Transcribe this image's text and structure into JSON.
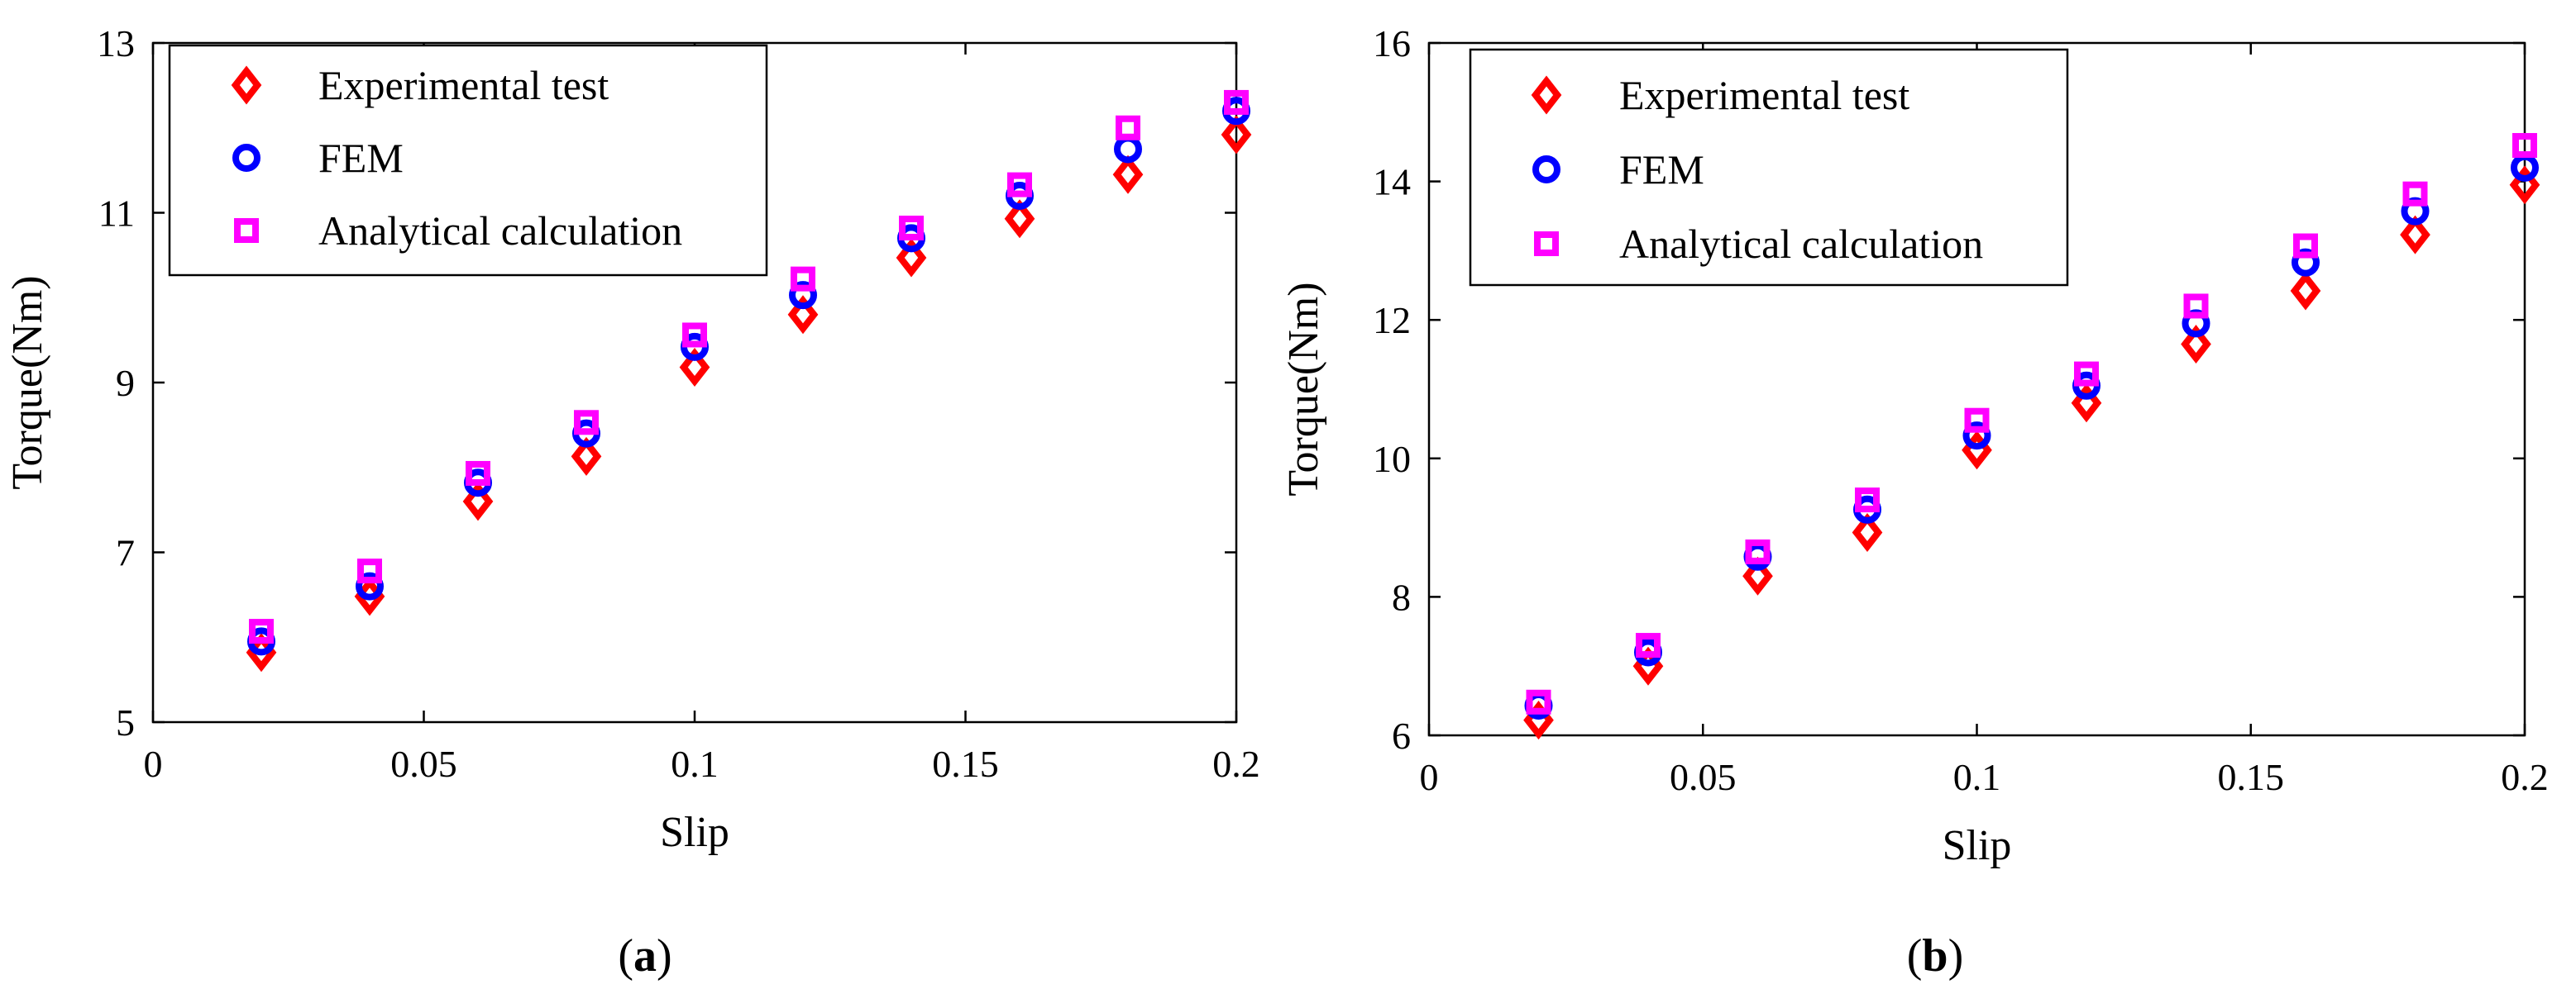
{
  "chart_data": [
    {
      "type": "scatter",
      "xlabel": "Slip",
      "ylabel": "Torque(Nm)",
      "xlim": [
        0,
        0.2
      ],
      "ylim": [
        5,
        13
      ],
      "xticks": [
        "0",
        "0.05",
        "0.1",
        "0.15",
        "0.2"
      ],
      "xtick_values": [
        0,
        0.05,
        0.1,
        0.15,
        0.2
      ],
      "yticks": [
        "5",
        "7",
        "9",
        "11",
        "13"
      ],
      "ytick_values": [
        5,
        7,
        9,
        11,
        13
      ],
      "legend_position": "top-left",
      "x": [
        0.02,
        0.04,
        0.06,
        0.08,
        0.1,
        0.12,
        0.14,
        0.16,
        0.18,
        0.2
      ],
      "series": [
        {
          "name": "Experimental test",
          "marker": "diamond",
          "color": "#ff0000",
          "values": [
            5.82,
            6.48,
            7.6,
            8.13,
            9.18,
            9.8,
            10.47,
            10.93,
            11.45,
            11.92
          ]
        },
        {
          "name": "FEM",
          "marker": "circle",
          "color": "#0000ff",
          "values": [
            5.95,
            6.6,
            7.82,
            8.4,
            9.42,
            10.03,
            10.7,
            11.2,
            11.75,
            12.2
          ]
        },
        {
          "name": "Analytical calculation",
          "marker": "square",
          "color": "#ff00ff",
          "values": [
            6.07,
            6.78,
            7.93,
            8.53,
            9.56,
            10.22,
            10.82,
            11.33,
            12.0,
            12.3
          ]
        }
      ],
      "caption_open": "(",
      "caption_letter": "a",
      "caption_close": ")"
    },
    {
      "type": "scatter",
      "xlabel": "Slip",
      "ylabel": "Torque(Nm)",
      "xlim": [
        0,
        0.2
      ],
      "ylim": [
        6,
        16
      ],
      "xticks": [
        "0",
        "0.05",
        "0.1",
        "0.15",
        "0.2"
      ],
      "xtick_values": [
        0,
        0.05,
        0.1,
        0.15,
        0.2
      ],
      "yticks": [
        "6",
        "8",
        "10",
        "12",
        "14",
        "16"
      ],
      "ytick_values": [
        6,
        8,
        10,
        12,
        14,
        16
      ],
      "legend_position": "top-left",
      "x": [
        0.02,
        0.04,
        0.06,
        0.08,
        0.1,
        0.12,
        0.14,
        0.16,
        0.18,
        0.2
      ],
      "series": [
        {
          "name": "Experimental test",
          "marker": "diamond",
          "color": "#ff0000",
          "values": [
            6.22,
            7.0,
            8.3,
            8.93,
            10.12,
            10.8,
            11.65,
            12.42,
            13.23,
            13.95
          ]
        },
        {
          "name": "FEM",
          "marker": "circle",
          "color": "#0000ff",
          "values": [
            6.43,
            7.2,
            8.58,
            9.26,
            10.33,
            11.05,
            11.95,
            12.83,
            13.57,
            14.2
          ]
        },
        {
          "name": "Analytical calculation",
          "marker": "square",
          "color": "#ff00ff",
          "values": [
            6.48,
            7.3,
            8.65,
            9.4,
            10.55,
            11.22,
            12.2,
            13.07,
            13.82,
            14.52
          ]
        }
      ],
      "caption_open": "(",
      "caption_letter": "b",
      "caption_close": ")"
    }
  ]
}
